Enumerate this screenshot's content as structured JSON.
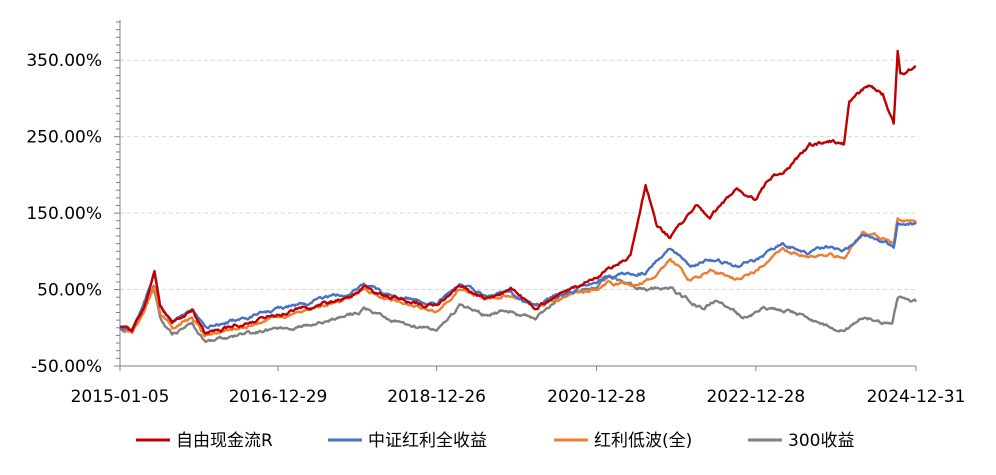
{
  "chart_data": {
    "type": "line",
    "title": "",
    "xlabel": "",
    "ylabel": "",
    "ylim": [
      -50,
      400
    ],
    "y_ticks": [
      "350.00%",
      "250.00%",
      "150.00%",
      "50.00%",
      "-50.00%"
    ],
    "y_tick_values": [
      350,
      250,
      150,
      50,
      -50
    ],
    "x_ticks": [
      "2015-01-05",
      "2016-12-29",
      "2018-12-26",
      "2020-12-28",
      "2022-12-28",
      "2024-12-31"
    ],
    "x_tick_dates": [
      "2015-01-05",
      "2016-12-29",
      "2018-12-26",
      "2020-12-28",
      "2022-12-28",
      "2024-12-31"
    ],
    "grid": {
      "horizontal": true,
      "vertical": false
    },
    "legend": {
      "position": "bottom"
    },
    "series": [
      {
        "name": "自由现金流R",
        "color": "#c00000",
        "points": [
          [
            "2015-01-05",
            0
          ],
          [
            "2015-03-01",
            -6
          ],
          [
            "2015-05-01",
            30
          ],
          [
            "2015-06-12",
            68
          ],
          [
            "2015-07-08",
            25
          ],
          [
            "2015-09-01",
            8
          ],
          [
            "2015-12-01",
            22
          ],
          [
            "2016-01-28",
            -8
          ],
          [
            "2016-06-01",
            2
          ],
          [
            "2016-12-29",
            18
          ],
          [
            "2017-06-01",
            28
          ],
          [
            "2017-12-01",
            42
          ],
          [
            "2018-01-26",
            54
          ],
          [
            "2018-06-01",
            40
          ],
          [
            "2018-12-26",
            28
          ],
          [
            "2019-04-10",
            55
          ],
          [
            "2019-08-01",
            40
          ],
          [
            "2019-12-01",
            50
          ],
          [
            "2020-03-23",
            28
          ],
          [
            "2020-06-01",
            38
          ],
          [
            "2020-12-28",
            68
          ],
          [
            "2021-06-01",
            95
          ],
          [
            "2021-08-10",
            185
          ],
          [
            "2021-10-01",
            135
          ],
          [
            "2021-12-01",
            118
          ],
          [
            "2022-04-01",
            160
          ],
          [
            "2022-06-01",
            145
          ],
          [
            "2022-10-01",
            182
          ],
          [
            "2022-12-28",
            168
          ],
          [
            "2023-03-01",
            195
          ],
          [
            "2023-06-01",
            210
          ],
          [
            "2023-09-01",
            238
          ],
          [
            "2023-12-01",
            245
          ],
          [
            "2024-02-05",
            240
          ],
          [
            "2024-03-01",
            295
          ],
          [
            "2024-06-01",
            318
          ],
          [
            "2024-08-01",
            305
          ],
          [
            "2024-09-20",
            268
          ],
          [
            "2024-10-08",
            360
          ],
          [
            "2024-10-20",
            330
          ],
          [
            "2024-12-31",
            342
          ]
        ]
      },
      {
        "name": "中证红利全收益",
        "color": "#4472c4",
        "points": [
          [
            "2015-01-05",
            0
          ],
          [
            "2015-03-01",
            -4
          ],
          [
            "2015-05-01",
            38
          ],
          [
            "2015-06-12",
            74
          ],
          [
            "2015-07-08",
            28
          ],
          [
            "2015-09-01",
            10
          ],
          [
            "2015-12-01",
            24
          ],
          [
            "2016-01-28",
            2
          ],
          [
            "2016-06-01",
            8
          ],
          [
            "2016-12-29",
            24
          ],
          [
            "2017-06-01",
            34
          ],
          [
            "2017-12-01",
            45
          ],
          [
            "2018-01-26",
            55
          ],
          [
            "2018-06-01",
            42
          ],
          [
            "2018-12-26",
            30
          ],
          [
            "2019-04-10",
            58
          ],
          [
            "2019-08-01",
            42
          ],
          [
            "2019-12-01",
            48
          ],
          [
            "2020-03-23",
            30
          ],
          [
            "2020-06-01",
            40
          ],
          [
            "2020-12-28",
            60
          ],
          [
            "2021-03-01",
            68
          ],
          [
            "2021-06-01",
            70
          ],
          [
            "2021-08-10",
            72
          ],
          [
            "2021-10-01",
            88
          ],
          [
            "2021-12-01",
            104
          ],
          [
            "2022-03-01",
            82
          ],
          [
            "2022-06-01",
            90
          ],
          [
            "2022-10-01",
            80
          ],
          [
            "2022-12-28",
            88
          ],
          [
            "2023-05-01",
            110
          ],
          [
            "2023-09-01",
            98
          ],
          [
            "2023-12-01",
            105
          ],
          [
            "2024-02-05",
            100
          ],
          [
            "2024-05-01",
            122
          ],
          [
            "2024-08-01",
            112
          ],
          [
            "2024-09-20",
            104
          ],
          [
            "2024-10-08",
            135
          ],
          [
            "2024-12-31",
            138
          ]
        ]
      },
      {
        "name": "红利低波(全)",
        "color": "#ed7d31",
        "points": [
          [
            "2015-01-05",
            0
          ],
          [
            "2015-03-01",
            -8
          ],
          [
            "2015-05-01",
            28
          ],
          [
            "2015-06-12",
            55
          ],
          [
            "2015-07-08",
            18
          ],
          [
            "2015-09-01",
            0
          ],
          [
            "2015-12-01",
            12
          ],
          [
            "2016-01-28",
            -10
          ],
          [
            "2016-06-01",
            -2
          ],
          [
            "2016-12-29",
            14
          ],
          [
            "2017-06-01",
            26
          ],
          [
            "2017-12-01",
            40
          ],
          [
            "2018-01-26",
            52
          ],
          [
            "2018-06-01",
            35
          ],
          [
            "2018-12-26",
            24
          ],
          [
            "2019-04-10",
            52
          ],
          [
            "2019-08-01",
            38
          ],
          [
            "2019-12-01",
            44
          ],
          [
            "2020-03-23",
            26
          ],
          [
            "2020-06-01",
            34
          ],
          [
            "2020-12-28",
            52
          ],
          [
            "2021-03-01",
            58
          ],
          [
            "2021-06-01",
            55
          ],
          [
            "2021-08-10",
            62
          ],
          [
            "2021-10-01",
            72
          ],
          [
            "2021-12-01",
            90
          ],
          [
            "2022-03-01",
            62
          ],
          [
            "2022-06-01",
            75
          ],
          [
            "2022-10-01",
            64
          ],
          [
            "2022-12-28",
            75
          ],
          [
            "2023-05-01",
            105
          ],
          [
            "2023-09-01",
            92
          ],
          [
            "2023-12-01",
            96
          ],
          [
            "2024-02-05",
            92
          ],
          [
            "2024-05-01",
            128
          ],
          [
            "2024-08-01",
            118
          ],
          [
            "2024-09-20",
            108
          ],
          [
            "2024-10-08",
            142
          ],
          [
            "2024-12-31",
            140
          ]
        ]
      },
      {
        "name": "300收益",
        "color": "#7f7f7f",
        "points": [
          [
            "2015-01-05",
            0
          ],
          [
            "2015-03-01",
            -2
          ],
          [
            "2015-05-01",
            30
          ],
          [
            "2015-06-08",
            55
          ],
          [
            "2015-07-08",
            12
          ],
          [
            "2015-09-01",
            -10
          ],
          [
            "2015-12-01",
            5
          ],
          [
            "2016-01-28",
            -18
          ],
          [
            "2016-06-01",
            -12
          ],
          [
            "2016-12-29",
            -2
          ],
          [
            "2017-06-01",
            5
          ],
          [
            "2017-12-01",
            18
          ],
          [
            "2018-01-26",
            25
          ],
          [
            "2018-06-01",
            10
          ],
          [
            "2018-12-26",
            -5
          ],
          [
            "2019-04-10",
            28
          ],
          [
            "2019-08-01",
            18
          ],
          [
            "2019-12-01",
            22
          ],
          [
            "2020-03-23",
            10
          ],
          [
            "2020-07-10",
            42
          ],
          [
            "2020-12-28",
            55
          ],
          [
            "2021-02-18",
            68
          ],
          [
            "2021-06-01",
            58
          ],
          [
            "2021-08-10",
            50
          ],
          [
            "2021-12-01",
            52
          ],
          [
            "2022-04-26",
            25
          ],
          [
            "2022-07-01",
            38
          ],
          [
            "2022-10-31",
            12
          ],
          [
            "2022-12-28",
            18
          ],
          [
            "2023-02-01",
            28
          ],
          [
            "2023-06-01",
            20
          ],
          [
            "2023-09-01",
            12
          ],
          [
            "2023-12-01",
            2
          ],
          [
            "2024-02-05",
            -2
          ],
          [
            "2024-05-01",
            12
          ],
          [
            "2024-09-13",
            4
          ],
          [
            "2024-10-08",
            40
          ],
          [
            "2024-12-31",
            34
          ]
        ]
      }
    ]
  }
}
